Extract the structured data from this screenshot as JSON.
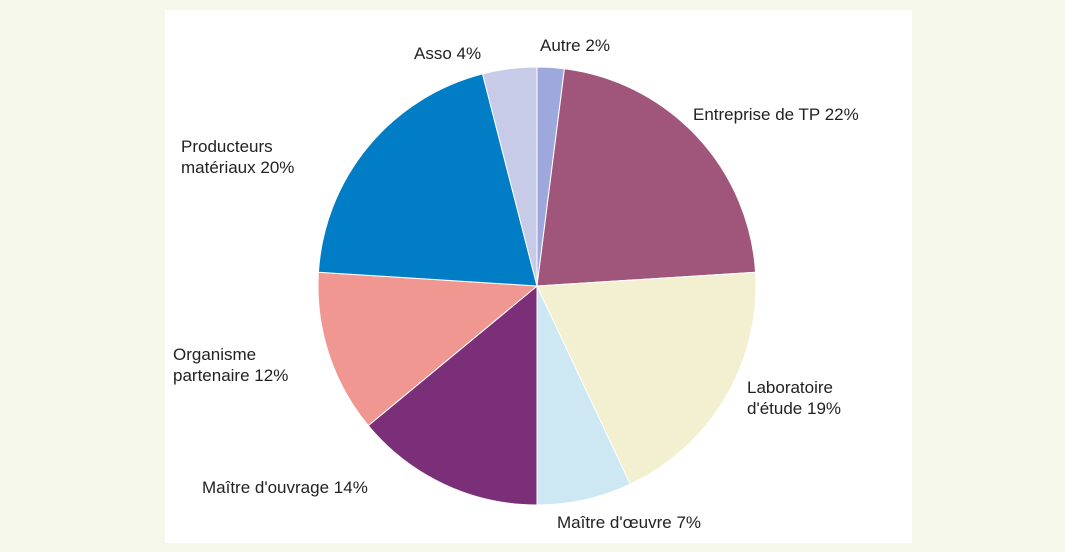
{
  "chart_data": {
    "type": "pie",
    "categories": [
      "Autre",
      "Entreprise de TP",
      "Laboratoire d'étude",
      "Maître d'œuvre",
      "Maître d'ouvrage",
      "Organisme partenaire",
      "Producteurs matériaux",
      "Asso"
    ],
    "values": [
      2,
      22,
      19,
      7,
      14,
      12,
      20,
      4
    ],
    "value_labels": [
      "2%",
      "22%",
      "19%",
      "7%",
      "14%",
      "12%",
      "20%",
      "4%"
    ],
    "colors": [
      "#9ea8dc",
      "#a0567a",
      "#f2f0d0",
      "#cde8f3",
      "#7b2f78",
      "#ef9790",
      "#007dc5",
      "#c8cbe8"
    ]
  }
}
